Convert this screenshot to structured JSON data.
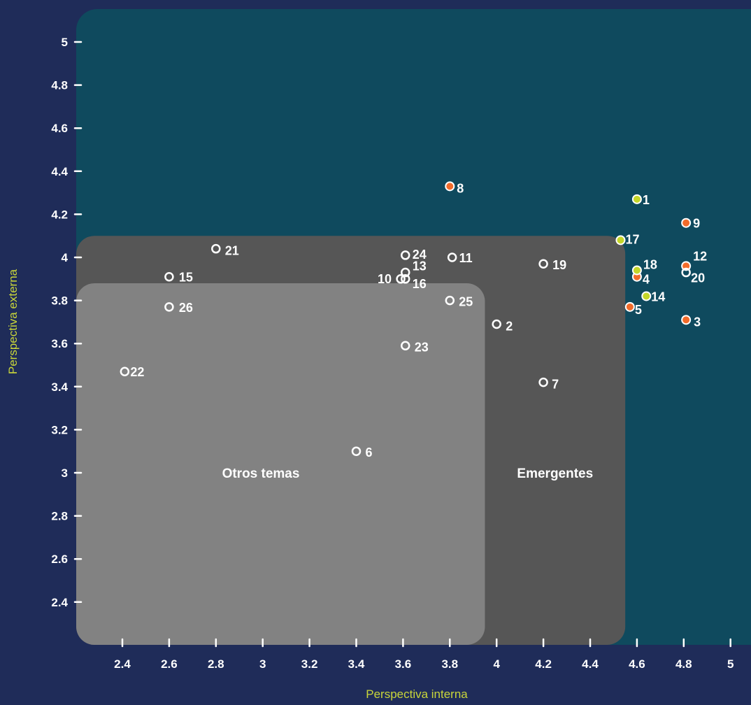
{
  "colors": {
    "background": "#1f2c59",
    "plot_area": "#0f4a5e",
    "emergentes_zone": "#565656",
    "otros_zone": "#828282",
    "orange_point": "#f26b2a",
    "yellow_point": "#c5d629",
    "hollow_point_stroke": "#ffffff",
    "axis_title": "#c9d63a"
  },
  "chart_data": {
    "type": "scatter",
    "xlabel": "Perspectiva interna",
    "ylabel": "Perspectiva externa",
    "xlim": [
      2.2,
      5.1
    ],
    "ylim": [
      2.2,
      5.15
    ],
    "x_ticks": [
      "2.4",
      "2.6",
      "2.8",
      "3",
      "3.2",
      "3.4",
      "3.6",
      "3.8",
      "4",
      "4.2",
      "4.4",
      "4.6",
      "4.8",
      "5"
    ],
    "y_ticks": [
      "2.4",
      "2.6",
      "2.8",
      "3",
      "3.2",
      "3.4",
      "3.6",
      "3.8",
      "4",
      "4.2",
      "4.4",
      "4.6",
      "4.8",
      "5"
    ],
    "zones": [
      {
        "name": "Emergentes",
        "x_max": 4.55,
        "y_max": 4.1
      },
      {
        "name": "Otros temas",
        "x_max": 3.95,
        "y_max": 3.88
      }
    ],
    "points": [
      {
        "label": "1",
        "x": 4.6,
        "y": 4.27,
        "style": "yellow"
      },
      {
        "label": "2",
        "x": 4.0,
        "y": 3.69,
        "style": "hollow"
      },
      {
        "label": "3",
        "x": 4.81,
        "y": 3.71,
        "style": "orange"
      },
      {
        "label": "4",
        "x": 4.6,
        "y": 3.91,
        "style": "orange"
      },
      {
        "label": "5",
        "x": 4.57,
        "y": 3.77,
        "style": "orange"
      },
      {
        "label": "6",
        "x": 3.4,
        "y": 3.1,
        "style": "hollow"
      },
      {
        "label": "7",
        "x": 4.2,
        "y": 3.42,
        "style": "hollow"
      },
      {
        "label": "8",
        "x": 3.8,
        "y": 4.33,
        "style": "orange"
      },
      {
        "label": "9",
        "x": 4.81,
        "y": 4.16,
        "style": "orange"
      },
      {
        "label": "10",
        "x": 3.59,
        "y": 3.9,
        "style": "hollow"
      },
      {
        "label": "11",
        "x": 3.81,
        "y": 4.0,
        "style": "hollow"
      },
      {
        "label": "12",
        "x": 4.81,
        "y": 3.96,
        "style": "orange"
      },
      {
        "label": "13",
        "x": 3.61,
        "y": 3.93,
        "style": "hollow"
      },
      {
        "label": "14",
        "x": 4.64,
        "y": 3.82,
        "style": "yellow"
      },
      {
        "label": "15",
        "x": 2.6,
        "y": 3.91,
        "style": "hollow"
      },
      {
        "label": "16",
        "x": 3.61,
        "y": 3.9,
        "style": "hollow"
      },
      {
        "label": "17",
        "x": 4.53,
        "y": 4.08,
        "style": "yellow"
      },
      {
        "label": "18",
        "x": 4.6,
        "y": 3.94,
        "style": "yellow"
      },
      {
        "label": "19",
        "x": 4.2,
        "y": 3.97,
        "style": "hollow"
      },
      {
        "label": "20",
        "x": 4.81,
        "y": 3.93,
        "style": "hollow"
      },
      {
        "label": "21",
        "x": 2.8,
        "y": 4.04,
        "style": "hollow"
      },
      {
        "label": "22",
        "x": 2.41,
        "y": 3.47,
        "style": "hollow"
      },
      {
        "label": "23",
        "x": 3.61,
        "y": 3.59,
        "style": "hollow"
      },
      {
        "label": "24",
        "x": 3.61,
        "y": 4.01,
        "style": "hollow"
      },
      {
        "label": "25",
        "x": 3.8,
        "y": 3.8,
        "style": "hollow"
      },
      {
        "label": "26",
        "x": 2.6,
        "y": 3.77,
        "style": "hollow"
      }
    ]
  }
}
